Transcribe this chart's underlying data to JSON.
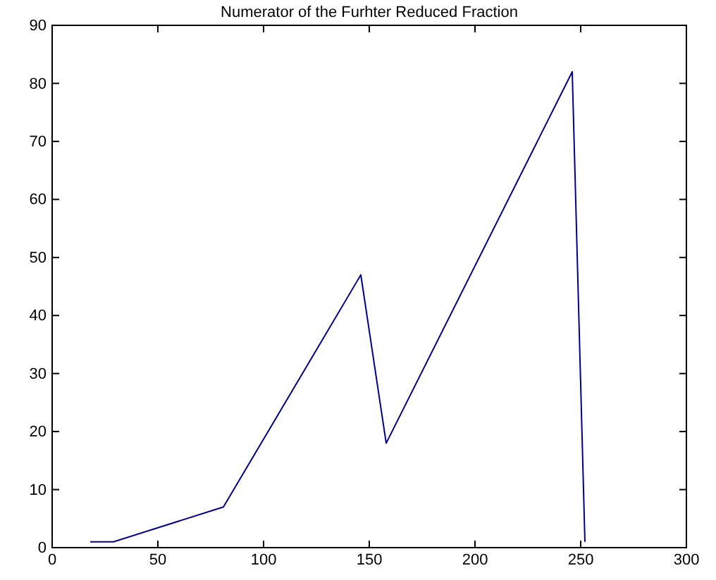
{
  "chart_data": {
    "type": "line",
    "title": "Numerator of the Furhter Reduced Fraction",
    "x": [
      18,
      29,
      81,
      146,
      158,
      246,
      252
    ],
    "series": [
      {
        "color": "#00008b",
        "values": [
          1,
          1,
          7,
          47,
          18,
          82,
          1
        ]
      }
    ],
    "xlim": [
      0,
      300
    ],
    "xticks": [
      0,
      50,
      100,
      150,
      200,
      250,
      300
    ],
    "ylim": [
      0,
      90
    ],
    "yticks": [
      0,
      10,
      20,
      30,
      40,
      50,
      60,
      70,
      80,
      90
    ],
    "grid": false
  }
}
